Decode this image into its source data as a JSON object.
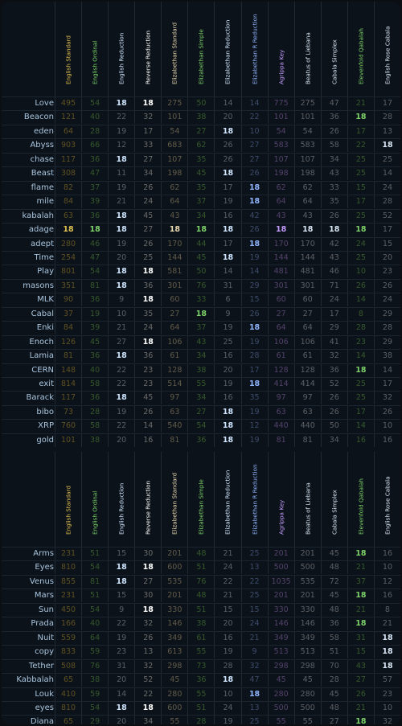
{
  "columns": [
    {
      "label": "English Standard",
      "color": "#e0c050"
    },
    {
      "label": "English Ordinal",
      "color": "#7dd36a"
    },
    {
      "label": "English Reduction",
      "color": "#cfe6ff"
    },
    {
      "label": "Reverse Reduction",
      "color": "#ffffff"
    },
    {
      "label": "Elizabethan Standard",
      "color": "#e8d8b0"
    },
    {
      "label": "Elizabethan Simple",
      "color": "#7dd36a"
    },
    {
      "label": "Elizabethan Reduction",
      "color": "#cfe6ff"
    },
    {
      "label": "Elizabethan R Reduction",
      "color": "#8fb4ff"
    },
    {
      "label": "Agrippa Key",
      "color": "#c49cff"
    },
    {
      "label": "Beatus of Liebana",
      "color": "#d8e6f5"
    },
    {
      "label": "Cabala Simplex",
      "color": "#d8e6f5"
    },
    {
      "label": "Elevenfold Qabalah",
      "color": "#7dd36a"
    },
    {
      "label": "English Rose Cabala",
      "color": "#d8e6f5"
    }
  ],
  "table1": [
    {
      "name": "Love",
      "values": [
        "495",
        "54",
        "18",
        "18",
        "275",
        "50",
        "14",
        "14",
        "775",
        "275",
        "47",
        "21",
        "17"
      ]
    },
    {
      "name": "Beacon",
      "values": [
        "121",
        "40",
        "22",
        "32",
        "101",
        "38",
        "20",
        "22",
        "101",
        "101",
        "36",
        "18",
        "28"
      ]
    },
    {
      "name": "eden",
      "values": [
        "64",
        "28",
        "19",
        "17",
        "54",
        "27",
        "18",
        "10",
        "54",
        "54",
        "26",
        "17",
        "13"
      ]
    },
    {
      "name": "Abyss",
      "values": [
        "903",
        "66",
        "12",
        "33",
        "683",
        "62",
        "26",
        "27",
        "583",
        "583",
        "58",
        "22",
        "18"
      ]
    },
    {
      "name": "chase",
      "values": [
        "117",
        "36",
        "18",
        "27",
        "107",
        "35",
        "26",
        "27",
        "107",
        "107",
        "34",
        "25",
        "25"
      ]
    },
    {
      "name": "Beast",
      "values": [
        "308",
        "47",
        "11",
        "34",
        "198",
        "45",
        "18",
        "26",
        "198",
        "198",
        "43",
        "25",
        "14"
      ]
    },
    {
      "name": "flame",
      "values": [
        "82",
        "37",
        "19",
        "26",
        "62",
        "35",
        "17",
        "18",
        "62",
        "62",
        "33",
        "15",
        "24"
      ]
    },
    {
      "name": "mile",
      "values": [
        "84",
        "39",
        "21",
        "24",
        "64",
        "37",
        "19",
        "18",
        "64",
        "64",
        "35",
        "17",
        "28"
      ]
    },
    {
      "name": "kabalah",
      "values": [
        "63",
        "36",
        "18",
        "45",
        "43",
        "34",
        "16",
        "42",
        "43",
        "43",
        "26",
        "25",
        "52"
      ]
    },
    {
      "name": "adage",
      "values": [
        "18",
        "18",
        "18",
        "27",
        "18",
        "18",
        "18",
        "26",
        "18",
        "18",
        "18",
        "18",
        "17"
      ]
    },
    {
      "name": "adept",
      "values": [
        "280",
        "46",
        "19",
        "26",
        "170",
        "44",
        "17",
        "18",
        "170",
        "170",
        "42",
        "24",
        "15"
      ]
    },
    {
      "name": "Time",
      "values": [
        "254",
        "47",
        "20",
        "25",
        "144",
        "45",
        "18",
        "19",
        "144",
        "144",
        "43",
        "25",
        "20"
      ]
    },
    {
      "name": "Play",
      "values": [
        "801",
        "54",
        "18",
        "18",
        "581",
        "50",
        "14",
        "14",
        "481",
        "481",
        "46",
        "10",
        "23"
      ]
    },
    {
      "name": "masons",
      "values": [
        "351",
        "81",
        "18",
        "36",
        "301",
        "76",
        "31",
        "29",
        "301",
        "301",
        "71",
        "26",
        "26"
      ]
    },
    {
      "name": "MLK",
      "values": [
        "90",
        "36",
        "9",
        "18",
        "60",
        "33",
        "6",
        "15",
        "60",
        "60",
        "24",
        "14",
        "24"
      ]
    },
    {
      "name": "Cabal",
      "values": [
        "37",
        "19",
        "10",
        "35",
        "27",
        "18",
        "9",
        "26",
        "27",
        "27",
        "17",
        "8",
        "29"
      ]
    },
    {
      "name": "Enki",
      "values": [
        "84",
        "39",
        "21",
        "24",
        "64",
        "37",
        "19",
        "18",
        "64",
        "64",
        "29",
        "28",
        "28"
      ]
    },
    {
      "name": "Enoch",
      "values": [
        "126",
        "45",
        "27",
        "18",
        "106",
        "43",
        "25",
        "19",
        "106",
        "106",
        "41",
        "23",
        "29"
      ]
    },
    {
      "name": "Lamia",
      "values": [
        "81",
        "36",
        "18",
        "36",
        "61",
        "34",
        "16",
        "28",
        "61",
        "61",
        "32",
        "14",
        "38"
      ]
    },
    {
      "name": "CERN",
      "values": [
        "148",
        "40",
        "22",
        "23",
        "128",
        "38",
        "20",
        "17",
        "128",
        "128",
        "36",
        "18",
        "14"
      ]
    },
    {
      "name": "exit",
      "values": [
        "814",
        "58",
        "22",
        "23",
        "514",
        "55",
        "19",
        "18",
        "414",
        "414",
        "52",
        "25",
        "17"
      ]
    },
    {
      "name": "Barack",
      "values": [
        "117",
        "36",
        "18",
        "45",
        "97",
        "34",
        "16",
        "35",
        "97",
        "97",
        "26",
        "25",
        "32"
      ]
    },
    {
      "name": "bibo",
      "values": [
        "73",
        "28",
        "19",
        "26",
        "63",
        "27",
        "18",
        "19",
        "63",
        "63",
        "26",
        "17",
        "26"
      ]
    },
    {
      "name": "XRP",
      "values": [
        "760",
        "58",
        "22",
        "14",
        "540",
        "54",
        "18",
        "12",
        "440",
        "440",
        "50",
        "14",
        "10"
      ]
    },
    {
      "name": "gold",
      "values": [
        "101",
        "38",
        "20",
        "16",
        "81",
        "36",
        "18",
        "19",
        "81",
        "81",
        "34",
        "16",
        "16"
      ]
    }
  ],
  "table2": [
    {
      "name": "Arms",
      "values": [
        "231",
        "51",
        "15",
        "30",
        "201",
        "48",
        "21",
        "25",
        "201",
        "201",
        "45",
        "18",
        "16"
      ]
    },
    {
      "name": "Eyes",
      "values": [
        "810",
        "54",
        "18",
        "18",
        "600",
        "51",
        "24",
        "13",
        "500",
        "500",
        "48",
        "21",
        "10"
      ]
    },
    {
      "name": "Venus",
      "values": [
        "855",
        "81",
        "18",
        "27",
        "535",
        "76",
        "22",
        "22",
        "1035",
        "535",
        "72",
        "37",
        "12"
      ]
    },
    {
      "name": "Mars",
      "values": [
        "231",
        "51",
        "15",
        "30",
        "201",
        "48",
        "21",
        "25",
        "201",
        "201",
        "45",
        "18",
        "16"
      ]
    },
    {
      "name": "Sun",
      "values": [
        "450",
        "54",
        "9",
        "18",
        "330",
        "51",
        "15",
        "15",
        "330",
        "330",
        "48",
        "21",
        "8"
      ]
    },
    {
      "name": "Prada",
      "values": [
        "166",
        "40",
        "22",
        "32",
        "146",
        "38",
        "20",
        "24",
        "146",
        "146",
        "36",
        "18",
        "21"
      ]
    },
    {
      "name": "Nuit",
      "values": [
        "559",
        "64",
        "19",
        "26",
        "349",
        "61",
        "16",
        "21",
        "349",
        "349",
        "58",
        "31",
        "18"
      ]
    },
    {
      "name": "copy",
      "values": [
        "833",
        "59",
        "23",
        "13",
        "613",
        "55",
        "19",
        "9",
        "513",
        "513",
        "51",
        "15",
        "18"
      ]
    },
    {
      "name": "Tether",
      "values": [
        "508",
        "76",
        "31",
        "32",
        "298",
        "73",
        "28",
        "32",
        "298",
        "298",
        "70",
        "43",
        "18"
      ]
    },
    {
      "name": "Kabbalah",
      "values": [
        "65",
        "38",
        "20",
        "52",
        "45",
        "36",
        "18",
        "47",
        "45",
        "45",
        "28",
        "27",
        "57"
      ]
    },
    {
      "name": "Louk",
      "values": [
        "410",
        "59",
        "14",
        "22",
        "280",
        "55",
        "10",
        "18",
        "280",
        "280",
        "45",
        "26",
        "23"
      ]
    },
    {
      "name": "eyes",
      "values": [
        "810",
        "54",
        "18",
        "18",
        "600",
        "51",
        "24",
        "13",
        "500",
        "500",
        "48",
        "21",
        "10"
      ]
    },
    {
      "name": "Diana",
      "values": [
        "65",
        "29",
        "20",
        "34",
        "55",
        "28",
        "19",
        "25",
        "55",
        "55",
        "27",
        "18",
        "32"
      ]
    }
  ]
}
